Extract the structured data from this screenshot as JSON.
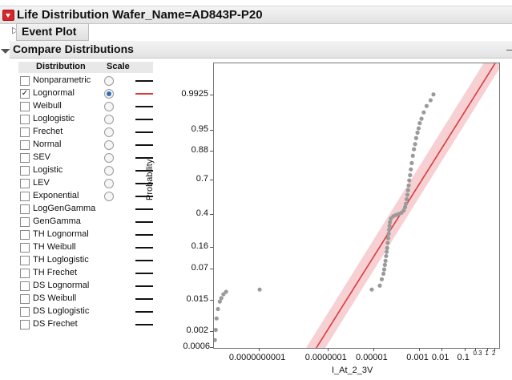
{
  "header": {
    "title": "Life Distribution Wafer_Name=AD843P-P20"
  },
  "event_plot": {
    "title": "Event Plot"
  },
  "compare": {
    "title": "Compare Distributions",
    "col_distribution": "Distribution",
    "col_scale": "Scale",
    "rows": [
      {
        "label": "Nonparametric",
        "checked": false,
        "radio": true,
        "selected": false,
        "line_color": "#111111"
      },
      {
        "label": "Lognormal",
        "checked": true,
        "radio": true,
        "selected": true,
        "line_color": "#d93b3b"
      },
      {
        "label": "Weibull",
        "checked": false,
        "radio": true,
        "selected": false,
        "line_color": "#111111"
      },
      {
        "label": "Loglogistic",
        "checked": false,
        "radio": true,
        "selected": false,
        "line_color": "#111111"
      },
      {
        "label": "Frechet",
        "checked": false,
        "radio": true,
        "selected": false,
        "line_color": "#111111"
      },
      {
        "label": "Normal",
        "checked": false,
        "radio": true,
        "selected": false,
        "line_color": "#111111"
      },
      {
        "label": "SEV",
        "checked": false,
        "radio": true,
        "selected": false,
        "line_color": "#111111"
      },
      {
        "label": "Logistic",
        "checked": false,
        "radio": true,
        "selected": false,
        "line_color": "#111111"
      },
      {
        "label": "LEV",
        "checked": false,
        "radio": true,
        "selected": false,
        "line_color": "#111111"
      },
      {
        "label": "Exponential",
        "checked": false,
        "radio": true,
        "selected": false,
        "line_color": "#111111"
      },
      {
        "label": "LogGenGamma",
        "checked": false,
        "radio": false,
        "selected": false,
        "line_color": "#111111"
      },
      {
        "label": "GenGamma",
        "checked": false,
        "radio": false,
        "selected": false,
        "line_color": "#111111"
      },
      {
        "label": "TH Lognormal",
        "checked": false,
        "radio": false,
        "selected": false,
        "line_color": "#111111"
      },
      {
        "label": "TH Weibull",
        "checked": false,
        "radio": false,
        "selected": false,
        "line_color": "#111111"
      },
      {
        "label": "TH Loglogistic",
        "checked": false,
        "radio": false,
        "selected": false,
        "line_color": "#111111"
      },
      {
        "label": "TH Frechet",
        "checked": false,
        "radio": false,
        "selected": false,
        "line_color": "#111111"
      },
      {
        "label": "DS Lognormal",
        "checked": false,
        "radio": false,
        "selected": false,
        "line_color": "#111111"
      },
      {
        "label": "DS Weibull",
        "checked": false,
        "radio": false,
        "selected": false,
        "line_color": "#111111"
      },
      {
        "label": "DS Loglogistic",
        "checked": false,
        "radio": false,
        "selected": false,
        "line_color": "#111111"
      },
      {
        "label": "DS Frechet",
        "checked": false,
        "radio": false,
        "selected": false,
        "line_color": "#111111"
      }
    ]
  },
  "chart_data": {
    "type": "scatter",
    "xlabel": "I_At_2_3V",
    "ylabel": "Probability",
    "x_scale": "log",
    "y_scale": "lognormal probability",
    "xlim": [
      1e-12,
      3
    ],
    "ylim": [
      0.0006,
      0.9992
    ],
    "x_ticks": [
      {
        "value": 1e-10,
        "label": "0.0000000001"
      },
      {
        "value": 1e-07,
        "label": "0.0000001"
      },
      {
        "value": 1e-05,
        "label": "0.00001"
      },
      {
        "value": 0.001,
        "label": "0.001"
      },
      {
        "value": 0.01,
        "label": "0.01"
      },
      {
        "value": 0.1,
        "label": "0.1"
      },
      {
        "value": 0.3,
        "label": "0.3"
      },
      {
        "value": 1,
        "label": "1"
      },
      {
        "value": 2,
        "label": "2"
      }
    ],
    "y_ticks": [
      {
        "value": 0.9925,
        "label": "0.9925"
      },
      {
        "value": 0.95,
        "label": "0.95"
      },
      {
        "value": 0.88,
        "label": "0.88"
      },
      {
        "value": 0.7,
        "label": "0.7"
      },
      {
        "value": 0.4,
        "label": "0.4"
      },
      {
        "value": 0.16,
        "label": "0.16"
      },
      {
        "value": 0.07,
        "label": "0.07"
      },
      {
        "value": 0.015,
        "label": "0.015"
      },
      {
        "value": 0.002,
        "label": "0.002"
      },
      {
        "value": 0.0006,
        "label": "0.0006"
      }
    ],
    "points": [
      {
        "x": 1.1e-12,
        "y": 0.0011
      },
      {
        "x": 1.2e-12,
        "y": 0.0023
      },
      {
        "x": 1.3e-12,
        "y": 0.005
      },
      {
        "x": 1.5e-12,
        "y": 0.009
      },
      {
        "x": 1.8e-12,
        "y": 0.014
      },
      {
        "x": 2.1e-12,
        "y": 0.017
      },
      {
        "x": 2.6e-12,
        "y": 0.021
      },
      {
        "x": 3.4e-12,
        "y": 0.024
      },
      {
        "x": 1e-10,
        "y": 0.027
      },
      {
        "x": 8e-06,
        "y": 0.027
      },
      {
        "x": 1.8e-05,
        "y": 0.033
      },
      {
        "x": 2.2e-05,
        "y": 0.045
      },
      {
        "x": 2.6e-05,
        "y": 0.058
      },
      {
        "x": 2.8e-05,
        "y": 0.07
      },
      {
        "x": 3e-05,
        "y": 0.085
      },
      {
        "x": 3.2e-05,
        "y": 0.1
      },
      {
        "x": 3.4e-05,
        "y": 0.12
      },
      {
        "x": 3.6e-05,
        "y": 0.14
      },
      {
        "x": 3.8e-05,
        "y": 0.16
      },
      {
        "x": 4e-05,
        "y": 0.19
      },
      {
        "x": 4.2e-05,
        "y": 0.22
      },
      {
        "x": 4.4e-05,
        "y": 0.25
      },
      {
        "x": 4.6e-05,
        "y": 0.28
      },
      {
        "x": 4.8e-05,
        "y": 0.31
      },
      {
        "x": 5e-05,
        "y": 0.34
      },
      {
        "x": 5.5e-05,
        "y": 0.37
      },
      {
        "x": 7e-05,
        "y": 0.39
      },
      {
        "x": 9e-05,
        "y": 0.4
      },
      {
        "x": 0.00012,
        "y": 0.41
      },
      {
        "x": 0.00016,
        "y": 0.42
      },
      {
        "x": 0.0002,
        "y": 0.44
      },
      {
        "x": 0.00023,
        "y": 0.47
      },
      {
        "x": 0.00025,
        "y": 0.5
      },
      {
        "x": 0.00027,
        "y": 0.54
      },
      {
        "x": 0.00029,
        "y": 0.58
      },
      {
        "x": 0.00031,
        "y": 0.62
      },
      {
        "x": 0.00033,
        "y": 0.66
      },
      {
        "x": 0.00035,
        "y": 0.7
      },
      {
        "x": 0.00038,
        "y": 0.74
      },
      {
        "x": 0.00041,
        "y": 0.78
      },
      {
        "x": 0.00045,
        "y": 0.82
      },
      {
        "x": 0.0005,
        "y": 0.86
      },
      {
        "x": 0.00056,
        "y": 0.89
      },
      {
        "x": 0.00063,
        "y": 0.91
      },
      {
        "x": 0.0007,
        "y": 0.93
      },
      {
        "x": 0.0008,
        "y": 0.945
      },
      {
        "x": 0.0009,
        "y": 0.955
      },
      {
        "x": 0.001,
        "y": 0.965
      },
      {
        "x": 0.0012,
        "y": 0.972
      },
      {
        "x": 0.0015,
        "y": 0.98
      },
      {
        "x": 0.002,
        "y": 0.986
      },
      {
        "x": 0.003,
        "y": 0.99
      },
      {
        "x": 0.004,
        "y": 0.993
      }
    ],
    "fit": {
      "name": "Lognormal",
      "color": "#d93b3b",
      "band_color": "#f4c0c4"
    },
    "point_color": "#9a9a9a"
  }
}
